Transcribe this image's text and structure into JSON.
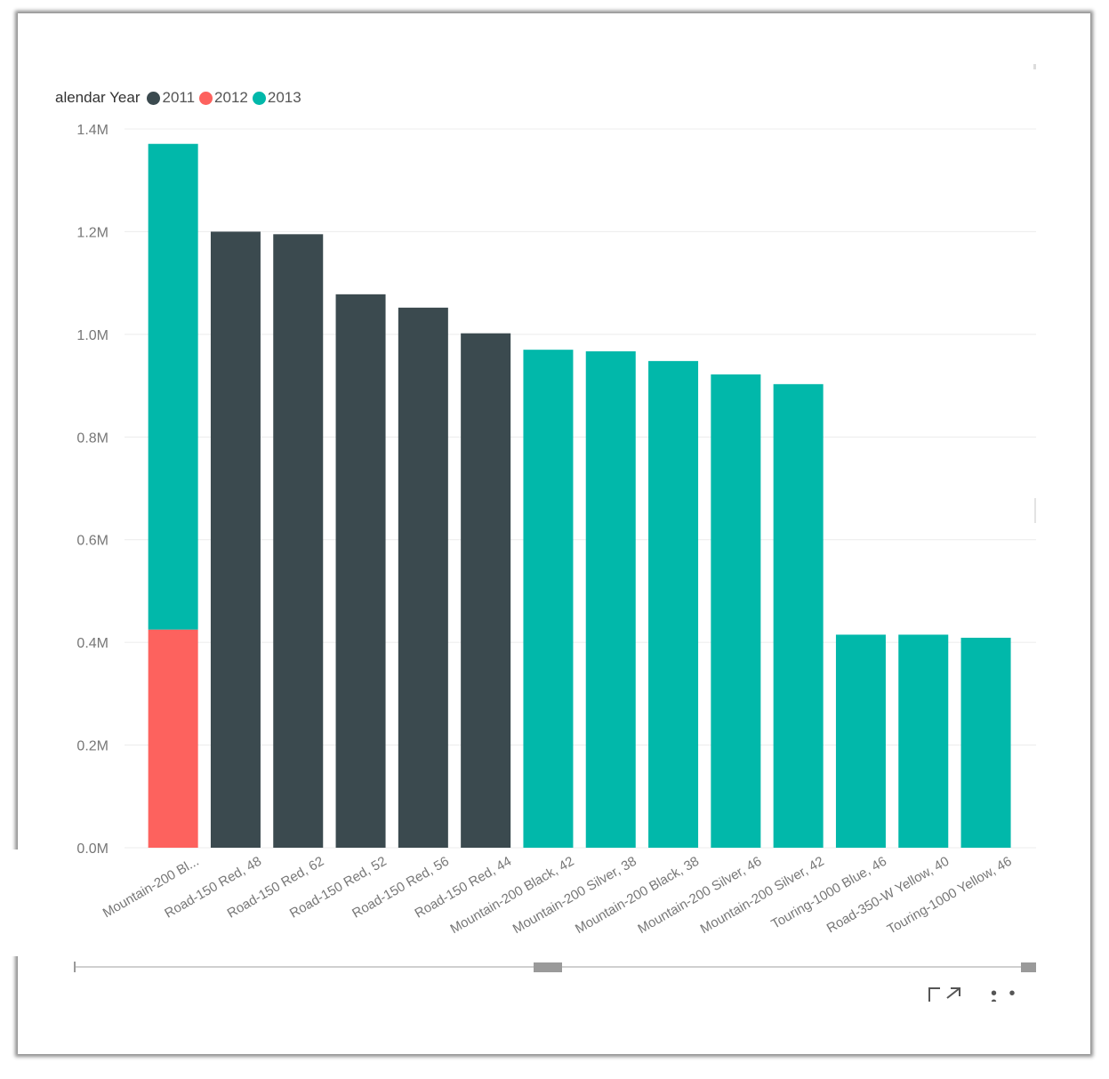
{
  "chart_data": {
    "type": "bar",
    "stacked": true,
    "title": "",
    "legend": {
      "title": "alendar Year",
      "position": "top-left",
      "entries": [
        {
          "name": "2011",
          "color": "#3B4A4F"
        },
        {
          "name": "2012",
          "color": "#FD625E"
        },
        {
          "name": "2013",
          "color": "#01B8AA"
        }
      ]
    },
    "categories": [
      "Mountain-200 Bl...",
      "Road-150 Red, 48",
      "Road-150 Red, 62",
      "Road-150 Red, 52",
      "Road-150 Red, 56",
      "Road-150 Red, 44",
      "Mountain-200 Black, 42",
      "Mountain-200 Silver, 38",
      "Mountain-200 Black, 38",
      "Mountain-200 Silver, 46",
      "Mountain-200 Silver, 42",
      "Touring-1000 Blue, 46",
      "Road-350-W Yellow, 40",
      "Touring-1000 Yellow, 46"
    ],
    "series": [
      {
        "name": "2011",
        "color": "#3B4A4F",
        "values": [
          0,
          1.2,
          1.195,
          1.078,
          1.052,
          1.002,
          0,
          0,
          0,
          0,
          0,
          0,
          0,
          0
        ]
      },
      {
        "name": "2012",
        "color": "#FD625E",
        "values": [
          0.425,
          0,
          0,
          0,
          0,
          0,
          0,
          0,
          0,
          0,
          0,
          0,
          0,
          0
        ]
      },
      {
        "name": "2013",
        "color": "#01B8AA",
        "values": [
          0.946,
          0,
          0,
          0,
          0,
          0,
          0.97,
          0.967,
          0.948,
          0.922,
          0.903,
          0.415,
          0.415,
          0.409
        ]
      }
    ],
    "stack_order": [
      "2012",
      "2011",
      "2013"
    ],
    "ylim": [
      0,
      1.4
    ],
    "yticks": [
      {
        "value": 0,
        "label": "0.0M"
      },
      {
        "value": 0.2,
        "label": "0.2M"
      },
      {
        "value": 0.4,
        "label": "0.4M"
      },
      {
        "value": 0.6,
        "label": "0.6M"
      },
      {
        "value": 0.8,
        "label": "0.8M"
      },
      {
        "value": 1.0,
        "label": "1.0M"
      },
      {
        "value": 1.2,
        "label": "1.2M"
      },
      {
        "value": 1.4,
        "label": "1.4M"
      }
    ],
    "grid": true,
    "xlabel": "",
    "ylabel": ""
  },
  "colors": {
    "grid": "#ececec",
    "tick_text": "#777777",
    "category_text": "#777777"
  },
  "controls": {
    "focus_icon": "focus-mode-icon",
    "more_icon": "more-options-icon",
    "more_glyph": "• • •"
  }
}
